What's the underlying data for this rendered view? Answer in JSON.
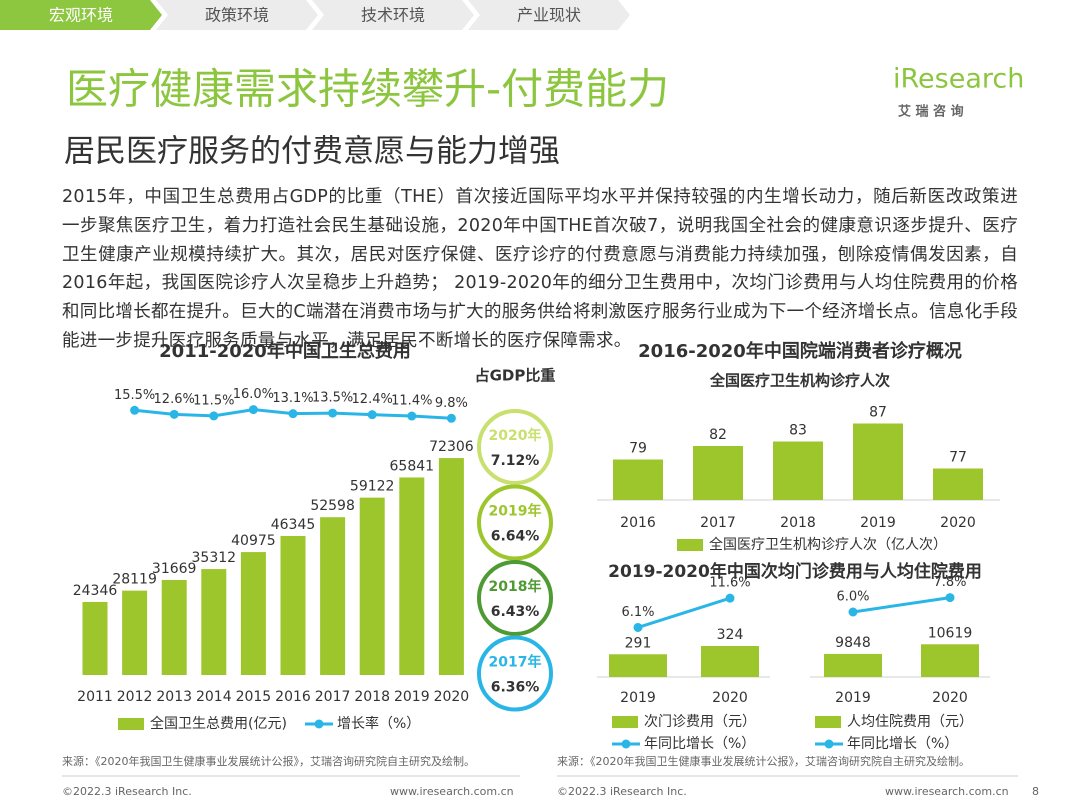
{
  "tabs": [
    "宏观环境",
    "政策环境",
    "技术环境",
    "产业现状"
  ],
  "logo": {
    "name": "iResearch",
    "sub": "艾 瑞 咨 询"
  },
  "title": "医疗健康需求持续攀升-付费能力",
  "subtitle": "居民医疗服务的付费意愿与能力增强",
  "paragraph": "2015年，中国卫生总费用占GDP的比重（THE）首次接近国际平均水平并保持较强的内生增长动力，随后新医改政策进一步聚焦医疗卫生，着力打造社会民生基础设施，2020年中国THE首次破7，说明我国全社会的健康意识逐步提升、医疗卫生健康产业规模持续扩大。其次，居民对医疗保健、医疗诊疗的付费意愿与消费能力持续加强，刨除疫情偶发因素，自2016年起，我国医院诊疗人次呈稳步上升趋势； 2019-2020年的细分卫生费用中，次均门诊费用与人均住院费用的价格和同比增长都在提升。巨大的C端潜在消费市场与扩大的服务供给将刺激医疗服务行业成为下一个经济增长点。信息化手段能进一步提升医疗服务质量与水平，满足居民不断增长的医疗保障需求。",
  "gdp_share": {
    "title": "占GDP比重",
    "items": [
      {
        "year": "2020年",
        "value": "7.12%",
        "color": "#c8e06e"
      },
      {
        "year": "2019年",
        "value": "6.64%",
        "color": "#9dc62d"
      },
      {
        "year": "2018年",
        "value": "6.43%",
        "color": "#4f9a33"
      },
      {
        "year": "2017年",
        "value": "6.36%",
        "color": "#29b6e6"
      }
    ]
  },
  "chart_data": [
    {
      "type": "combo",
      "title": "2011-2020年中国卫生总费用",
      "categories": [
        "2011",
        "2012",
        "2013",
        "2014",
        "2015",
        "2016",
        "2017",
        "2018",
        "2019",
        "2020"
      ],
      "ylim": [
        0,
        80000
      ],
      "y2lim": [
        0,
        20
      ],
      "series": [
        {
          "name": "全国卫生总费用(亿元)",
          "color": "#9dc62d",
          "values": [
            24346,
            28119,
            31669,
            35312,
            40975,
            46345,
            52598,
            59122,
            65841,
            72306
          ]
        },
        {
          "name": "增长率（%）",
          "color": "#29b6e6",
          "axis": "y2",
          "values": [
            null,
            15.5,
            12.6,
            11.5,
            16.0,
            13.1,
            13.5,
            12.4,
            11.4,
            9.8
          ],
          "value_labels": [
            null,
            "15.5%",
            "12.6%",
            "11.5%",
            "16.0%",
            "13.1%",
            "13.5%",
            "12.4%",
            "11.4%",
            "9.8%"
          ]
        }
      ]
    },
    {
      "type": "bar",
      "title": "2016-2020年中国院端消费者诊疗概况",
      "subtitle": "全国医疗卫生机构诊疗人次",
      "categories": [
        "2016",
        "2017",
        "2018",
        "2019",
        "2020"
      ],
      "ylim": [
        70,
        90
      ],
      "series": [
        {
          "name": "全国医疗卫生机构诊疗人次（亿人次）",
          "color": "#9dc62d",
          "values": [
            79,
            82,
            83,
            87,
            77
          ]
        }
      ]
    },
    {
      "type": "combo",
      "title": "2019-2020年中国次均门诊费用与人均住院费用",
      "categories": [
        "2019",
        "2020"
      ],
      "ylim": [
        200,
        400
      ],
      "y2lim": [
        0,
        15
      ],
      "series": [
        {
          "name": "次门诊费用（元）",
          "color": "#9dc62d",
          "values": [
            291,
            324
          ]
        },
        {
          "name": "年同比增长（%）",
          "color": "#29b6e6",
          "axis": "y2",
          "values": [
            6.1,
            11.6
          ],
          "value_labels": [
            "6.1%",
            "11.6%"
          ]
        }
      ]
    },
    {
      "type": "combo",
      "categories": [
        "2019",
        "2020"
      ],
      "ylim": [
        8000,
        12000
      ],
      "y2lim": [
        0,
        10
      ],
      "series": [
        {
          "name": "人均住院费用（元）",
          "color": "#9dc62d",
          "values": [
            9848,
            10619
          ]
        },
        {
          "name": "年同比增长（%）",
          "color": "#29b6e6",
          "axis": "y2",
          "values": [
            6.0,
            7.8
          ],
          "value_labels": [
            "6.0%",
            "7.8%"
          ]
        }
      ]
    }
  ],
  "sources": [
    "来源：《2020年我国卫生健康事业发展统计公报》，艾瑞咨询研究院自主研究及绘制。",
    "来源：《2020年我国卫生健康事业发展统计公报》，艾瑞咨询研究院自主研究及绘制。"
  ],
  "footer": {
    "copyright": [
      "©2022.3 iResearch Inc.",
      "©2022.3 iResearch Inc."
    ],
    "site": [
      "www.iresearch.com.cn",
      "www.iresearch.com.cn"
    ],
    "page": "8"
  }
}
